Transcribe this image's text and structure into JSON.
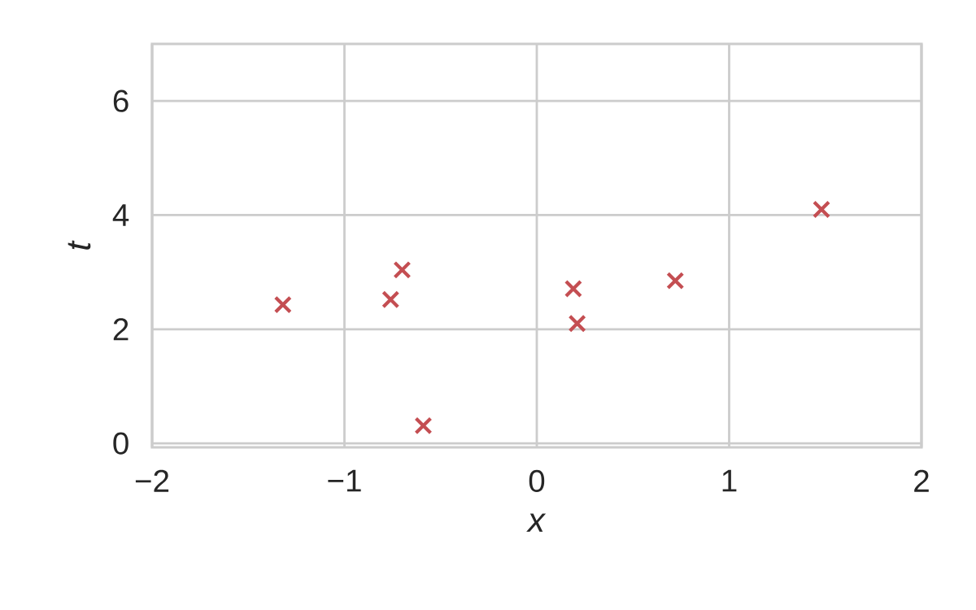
{
  "chart_data": {
    "type": "scatter",
    "xlabel": "*x*",
    "ylabel": "*t*",
    "x": [
      -1.32,
      -0.76,
      -0.7,
      -0.59,
      0.19,
      0.21,
      0.72,
      1.48
    ],
    "values": [
      2.43,
      2.52,
      3.04,
      0.31,
      2.71,
      2.1,
      2.85,
      4.1
    ],
    "color": "#c44e52",
    "marker": "cross",
    "grid": true,
    "xlim": [
      -2,
      2
    ],
    "ylim": [
      -0.07,
      7
    ],
    "xticks": [
      {
        "value": -2,
        "label": "−2"
      },
      {
        "value": -1,
        "label": "−1"
      },
      0,
      1,
      2
    ],
    "yticks": [
      0,
      2,
      4,
      6
    ]
  }
}
